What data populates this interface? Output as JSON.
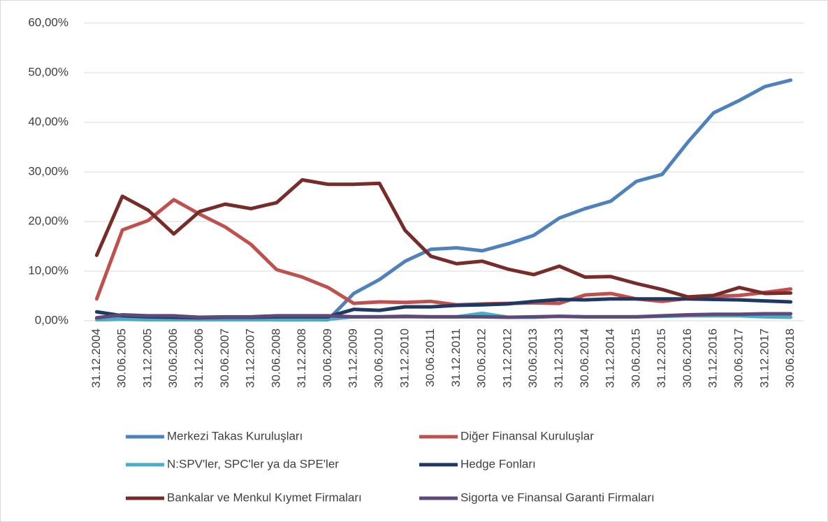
{
  "chart_data": {
    "type": "line",
    "categories": [
      "31.12.2004",
      "30.06.2005",
      "31.12.2005",
      "30.06.2006",
      "31.12.2006",
      "30.06.2007",
      "31.12.2007",
      "30.06.2008",
      "31.12.2008",
      "30.06.2009",
      "31.12.2009",
      "30.06.2010",
      "31.12.2010",
      "30.06.2011",
      "31.12.2011",
      "30.06.2012",
      "31.12.2012",
      "30.06.2013",
      "31.12.2013",
      "30.06.2014",
      "31.12.2014",
      "30.06.2015",
      "31.12.2015",
      "30.06.2016",
      "31.12.2016",
      "30.06.2017",
      "31.12.2017",
      "30.06.2018"
    ],
    "series": [
      {
        "name": "Merkezi Takas Kuruluşları",
        "color": "#4f81bd",
        "values": [
          0.5,
          0.6,
          0.5,
          0.5,
          0.4,
          0.4,
          0.3,
          0.2,
          0.2,
          0.2,
          5.5,
          8.3,
          12,
          14.4,
          14.7,
          14.1,
          15.5,
          17.2,
          20.7,
          22.6,
          24.1,
          28.1,
          29.5,
          36,
          41.9,
          44.4,
          47.2,
          48.5
        ]
      },
      {
        "name": "Diğer Finansal Kuruluşlar",
        "color": "#c0504d",
        "values": [
          4.4,
          18.3,
          20.2,
          24.4,
          21.5,
          18.9,
          15.4,
          10.3,
          8.8,
          6.7,
          3.5,
          3.8,
          3.7,
          3.9,
          3.2,
          3.4,
          3.5,
          3.6,
          3.5,
          5.2,
          5.5,
          4.4,
          3.9,
          4.5,
          4.9,
          5.1,
          5.7,
          6.4
        ]
      },
      {
        "name": "N:SPV'ler, SPC'ler ya da SPE'ler",
        "color": "#4bacc6",
        "values": [
          0.2,
          0.3,
          0.2,
          0.2,
          0.2,
          0.2,
          0.2,
          0.2,
          0.2,
          0.3,
          0.8,
          0.8,
          0.8,
          0.8,
          0.8,
          1.5,
          0.7,
          0.7,
          0.9,
          0.8,
          0.8,
          0.8,
          0.9,
          1.0,
          1.0,
          1.0,
          0.8,
          0.7
        ]
      },
      {
        "name": "Hedge Fonları",
        "color": "#1f3864",
        "values": [
          1.8,
          1.0,
          0.8,
          0.7,
          0.6,
          0.7,
          0.7,
          0.8,
          0.8,
          0.8,
          2.3,
          2.1,
          2.8,
          2.8,
          3.1,
          3.2,
          3.4,
          3.9,
          4.3,
          4.2,
          4.4,
          4.4,
          4.4,
          4.4,
          4.3,
          4.2,
          4.0,
          3.8
        ]
      },
      {
        "name": "Bankalar ve Menkul Kıymet Firmaları",
        "color": "#772c2a",
        "values": [
          13.2,
          25.1,
          22.3,
          17.5,
          22.0,
          23.5,
          22.6,
          23.8,
          28.4,
          27.5,
          27.5,
          27.7,
          18.2,
          13.0,
          11.5,
          12.0,
          10.4,
          9.3,
          11.0,
          8.8,
          8.9,
          7.5,
          6.3,
          4.8,
          5.1,
          6.7,
          5.5,
          5.6
        ]
      },
      {
        "name": "Sigorta ve Finansal Garanti Firmaları",
        "color": "#5f497a",
        "values": [
          0.6,
          1.2,
          1.0,
          1.0,
          0.7,
          0.8,
          0.8,
          1.0,
          1.0,
          1.0,
          0.8,
          0.8,
          0.9,
          0.8,
          0.8,
          0.8,
          0.7,
          0.8,
          0.9,
          0.8,
          0.8,
          0.8,
          1.0,
          1.2,
          1.3,
          1.3,
          1.4,
          1.4
        ]
      }
    ],
    "ylim": [
      0,
      60
    ],
    "yticks": [
      {
        "value": 0,
        "label": "0,00%"
      },
      {
        "value": 10,
        "label": "10,00%"
      },
      {
        "value": 20,
        "label": "20,00%"
      },
      {
        "value": 30,
        "label": "30,00%"
      },
      {
        "value": 40,
        "label": "40,00%"
      },
      {
        "value": 50,
        "label": "50,00%"
      },
      {
        "value": 60,
        "label": "60,00%"
      }
    ],
    "grid": true
  }
}
